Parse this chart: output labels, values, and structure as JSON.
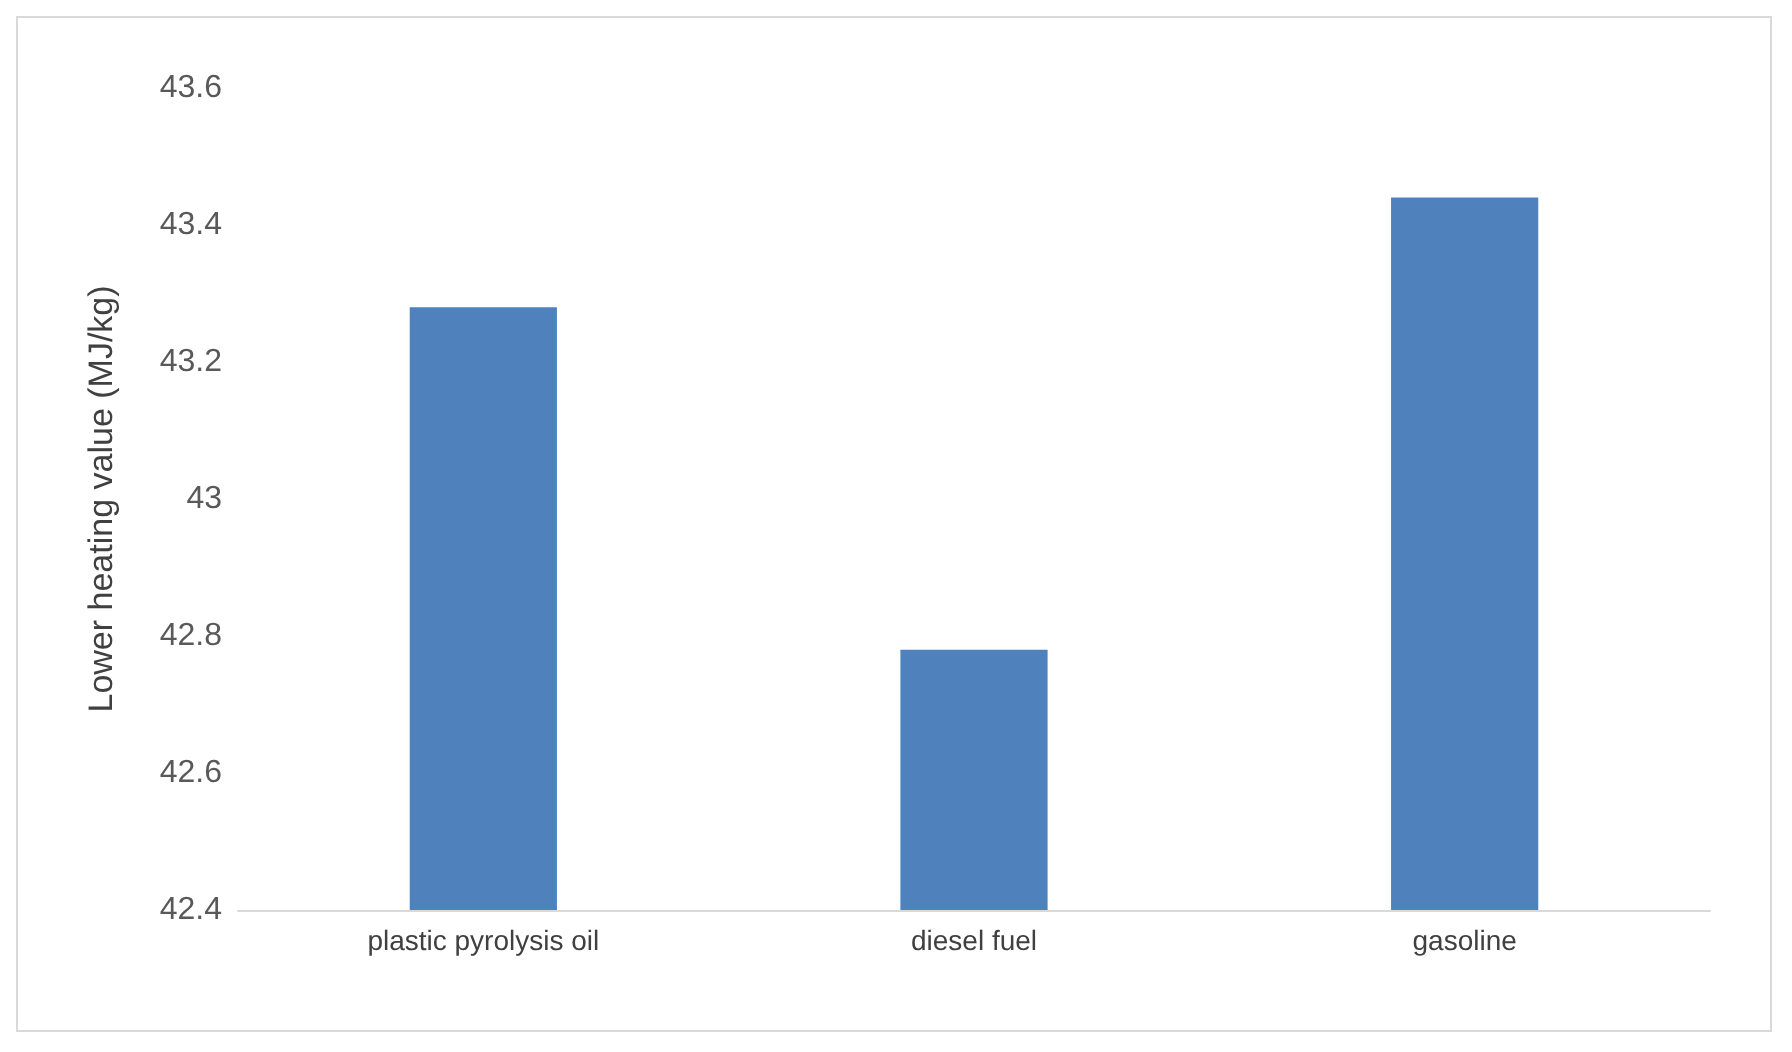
{
  "chart_data": {
    "type": "bar",
    "ylabel": "Lower heating value (MJ/kg)",
    "categories": [
      "plastic pyrolysis oil",
      "diesel fuel",
      "gasoline"
    ],
    "values": [
      43.28,
      42.78,
      43.44
    ],
    "color": "#4f81bd",
    "ylim": [
      42.4,
      43.6
    ],
    "yticks": [
      42.4,
      42.6,
      42.8,
      43,
      43.2,
      43.4,
      43.6
    ],
    "grid": false
  }
}
